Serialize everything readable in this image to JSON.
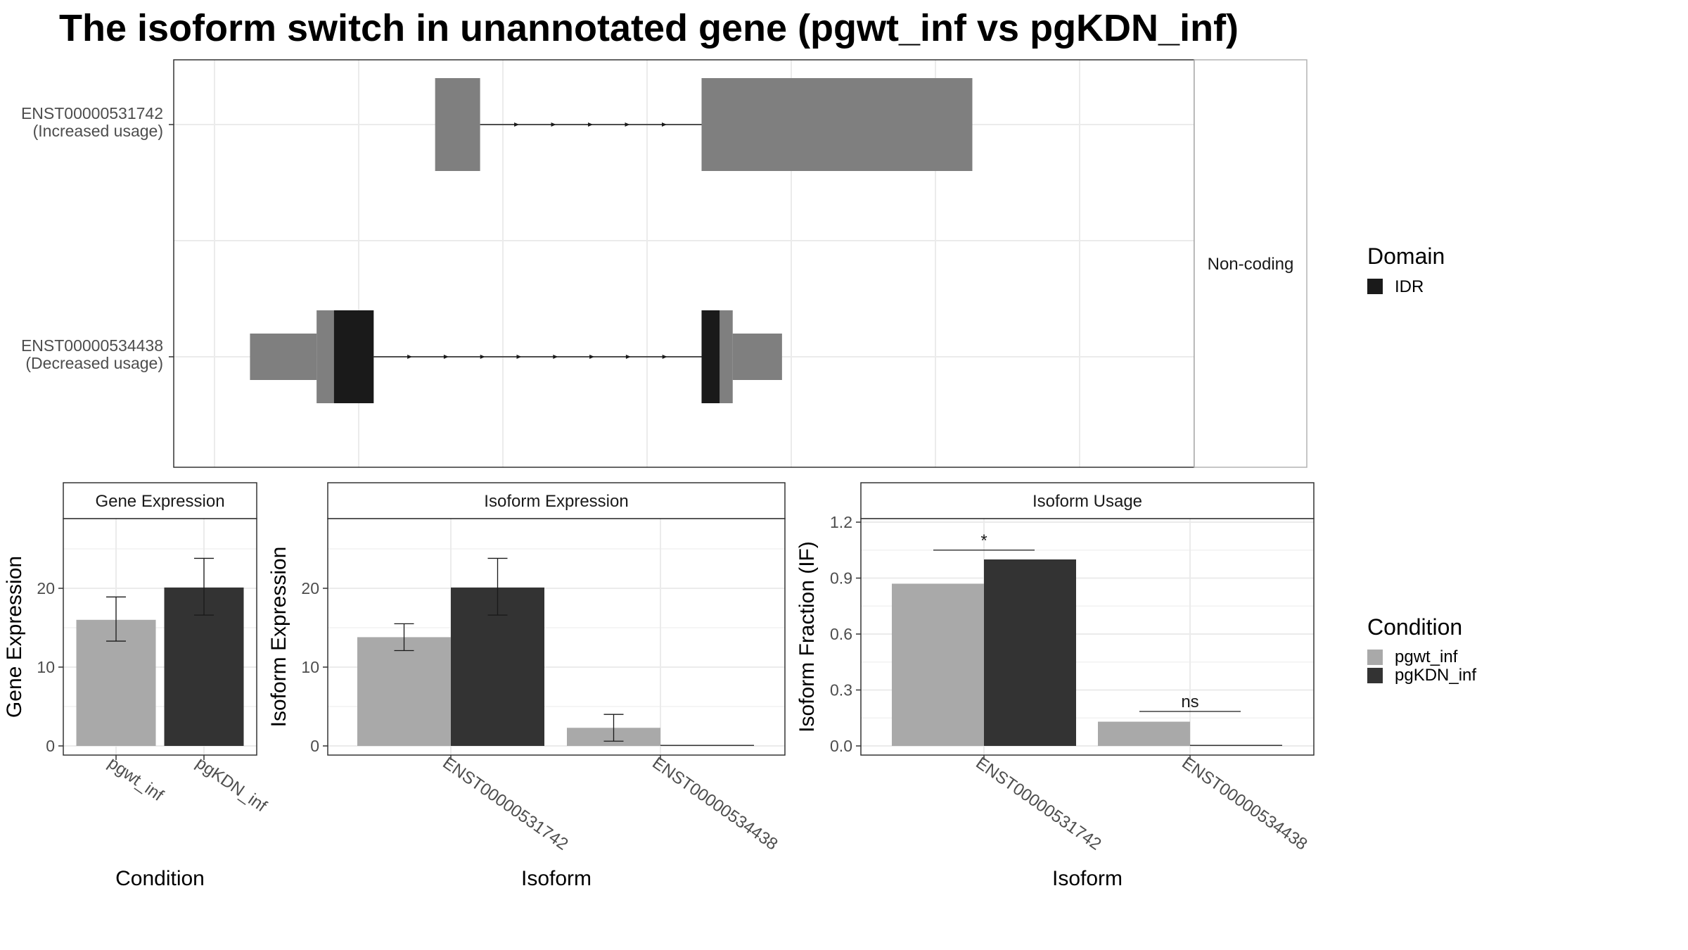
{
  "title": "The isoform switch in unannotated gene (pgwt_inf vs pgKDN_inf)",
  "colors": {
    "exon": "#7f7f7f",
    "domain_idr": "#1a1a1a",
    "cond_pgwt": "#a9a9a9",
    "cond_pgkdn": "#333333",
    "grid": "#ebebeb",
    "axis_text": "#4d4d4d"
  },
  "legend": {
    "domain_title": "Domain",
    "domain_items": [
      {
        "label": "IDR",
        "color": "#1a1a1a"
      }
    ],
    "condition_title": "Condition",
    "condition_items": [
      {
        "label": "pgwt_inf",
        "color": "#a9a9a9"
      },
      {
        "label": "pgKDN_inf",
        "color": "#333333"
      }
    ]
  },
  "chart_data": [
    {
      "type": "gene-structure",
      "facet_label": "Non-coding",
      "x_range": [
        0,
        1
      ],
      "transcripts": [
        {
          "id": "ENST00000531742",
          "usage": "(Increased usage)",
          "exons": [
            {
              "start": 0.255,
              "end": 0.307,
              "kind": "noncoding"
            },
            {
              "start": 0.563,
              "end": 0.876,
              "kind": "noncoding"
            }
          ],
          "intron_arrows": 5
        },
        {
          "id": "ENST00000534438",
          "usage": "(Decreased usage)",
          "exons": [
            {
              "start": 0.041,
              "end": 0.118,
              "kind": "utr"
            },
            {
              "start": 0.118,
              "end": 0.138,
              "kind": "cds"
            },
            {
              "start": 0.138,
              "end": 0.184,
              "kind": "domain",
              "domain": "IDR"
            },
            {
              "start": 0.563,
              "end": 0.584,
              "kind": "domain",
              "domain": "IDR"
            },
            {
              "start": 0.584,
              "end": 0.599,
              "kind": "cds"
            },
            {
              "start": 0.599,
              "end": 0.656,
              "kind": "utr"
            }
          ],
          "intron_arrows": 8
        }
      ]
    },
    {
      "type": "bar",
      "strip": "Gene Expression",
      "ylabel": "Gene Expression",
      "xlabel": "Condition",
      "ylim": [
        0,
        28
      ],
      "yticks": [
        0,
        10,
        20
      ],
      "categories": [
        "pgwt_inf",
        "pgKDN_inf"
      ],
      "values": [
        16.0,
        20.1
      ],
      "error": [
        [
          13.3,
          18.9
        ],
        [
          16.6,
          23.8
        ]
      ]
    },
    {
      "type": "bar",
      "strip": "Isoform Expression",
      "ylabel": "Isoform Expression",
      "xlabel": "Isoform",
      "ylim": [
        0,
        28
      ],
      "yticks": [
        0,
        10,
        20
      ],
      "categories": [
        "ENST00000531742",
        "ENST00000534438"
      ],
      "series": [
        {
          "name": "pgwt_inf",
          "values": [
            13.8,
            2.3
          ],
          "error": [
            [
              12.1,
              15.5
            ],
            [
              0.6,
              4.0
            ]
          ]
        },
        {
          "name": "pgKDN_inf",
          "values": [
            20.1,
            0.0
          ],
          "error": [
            [
              16.6,
              23.8
            ],
            null
          ]
        }
      ]
    },
    {
      "type": "bar",
      "strip": "Isoform Usage",
      "ylabel": "Isoform Fraction (IF)",
      "xlabel": "Isoform",
      "ylim": [
        0,
        1.25
      ],
      "yticks": [
        "0.0",
        "0.3",
        "0.6",
        "0.9",
        "1.2"
      ],
      "categories": [
        "ENST00000531742",
        "ENST00000534438"
      ],
      "series": [
        {
          "name": "pgwt_inf",
          "values": [
            0.87,
            0.13
          ]
        },
        {
          "name": "pgKDN_inf",
          "values": [
            1.0,
            0.0
          ]
        }
      ],
      "significance": [
        "*",
        "ns"
      ],
      "significance_y": [
        1.05,
        0.185
      ]
    }
  ]
}
